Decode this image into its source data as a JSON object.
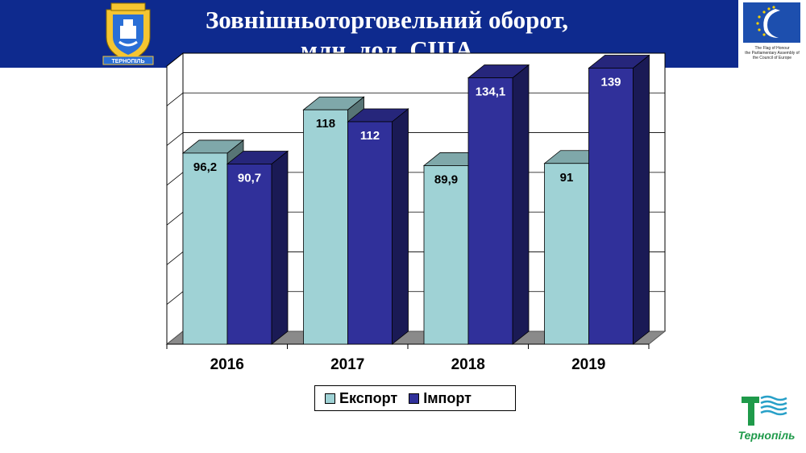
{
  "header": {
    "title_line1": "Зовнішньоторговельний оборот,",
    "title_line2": "млн. дол. США",
    "coat_of_arms_label": "ТЕРНОПІЛЬ",
    "coe_caption_line1": "The Flag of Honour",
    "coe_caption_line2": "the Parliamentary Assembly of",
    "coe_caption_line3": "the Council of Europe"
  },
  "colors": {
    "header_bg": "#0e2a8e",
    "export": "#9fd2d5",
    "import": "#30309a",
    "floor": "#8a8a8a"
  },
  "chart_data": {
    "type": "bar",
    "title": "Зовнішньоторговельний оборот, млн. дол. США",
    "categories": [
      "2016",
      "2017",
      "2018",
      "2019"
    ],
    "series": [
      {
        "name": "Експорт",
        "values": [
          96.2,
          118,
          89.9,
          91
        ],
        "labels": [
          "96,2",
          "118",
          "89,9",
          "91"
        ]
      },
      {
        "name": "Імпорт",
        "values": [
          90.7,
          112,
          134.1,
          139
        ],
        "labels": [
          "90,7",
          "112",
          "134,1",
          "139"
        ]
      }
    ],
    "ylim": [
      0,
      140
    ],
    "grid": true,
    "legend_position": "bottom",
    "bar_style": "3d"
  },
  "logo": {
    "text": "Тернопіль",
    "icon": "ternopil-t-logo-icon"
  }
}
